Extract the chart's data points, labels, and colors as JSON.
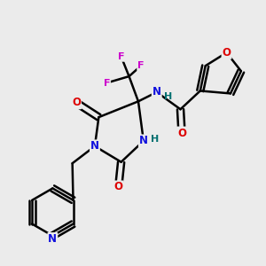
{
  "bg_color": "#ebebeb",
  "bond_color": "#000000",
  "bond_width": 1.8,
  "atom_colors": {
    "C": "#000000",
    "N": "#1010dd",
    "O": "#dd0000",
    "F": "#cc00cc",
    "H": "#007070"
  },
  "font_size": 8.5
}
